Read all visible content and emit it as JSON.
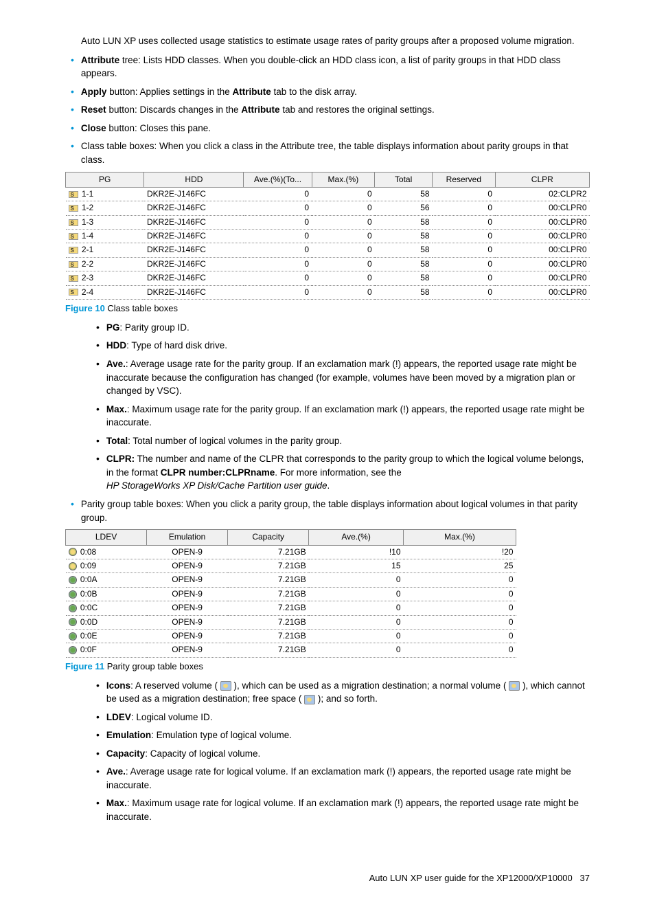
{
  "intro": "Auto LUN XP uses collected usage statistics to estimate usage rates of parity groups after a proposed volume migration.",
  "bullets_top": [
    {
      "bold": "Attribute",
      "rest": " tree: Lists HDD classes. When you double-click an HDD class icon, a list of parity groups in that HDD class appears."
    },
    {
      "bold": "Apply",
      "rest": " button: Applies settings in the ",
      "bold2": "Attribute",
      "rest2": " tab to the disk array."
    },
    {
      "bold": "Reset",
      "rest": " button: Discards changes in the ",
      "bold2": "Attribute",
      "rest2": " tab and restores the original settings."
    },
    {
      "bold": "Close",
      "rest": " button: Closes this pane."
    },
    {
      "plain": "Class table boxes: When you click a class in the Attribute tree, the table displays information about parity groups in that class."
    }
  ],
  "table1": {
    "headers": [
      "PG",
      "HDD",
      "Ave.(%)(To...",
      "Max.(%)",
      "Total",
      "Reserved",
      "CLPR"
    ],
    "widths": [
      "15%",
      "19%",
      "13%",
      "12%",
      "11%",
      "12%",
      "18%"
    ],
    "rows": [
      [
        "1-1",
        "DKR2E-J146FC",
        "0",
        "0",
        "58",
        "0",
        "02:CLPR2"
      ],
      [
        "1-2",
        "DKR2E-J146FC",
        "0",
        "0",
        "56",
        "0",
        "00:CLPR0"
      ],
      [
        "1-3",
        "DKR2E-J146FC",
        "0",
        "0",
        "58",
        "0",
        "00:CLPR0"
      ],
      [
        "1-4",
        "DKR2E-J146FC",
        "0",
        "0",
        "58",
        "0",
        "00:CLPR0"
      ],
      [
        "2-1",
        "DKR2E-J146FC",
        "0",
        "0",
        "58",
        "0",
        "00:CLPR0"
      ],
      [
        "2-2",
        "DKR2E-J146FC",
        "0",
        "0",
        "58",
        "0",
        "00:CLPR0"
      ],
      [
        "2-3",
        "DKR2E-J146FC",
        "0",
        "0",
        "58",
        "0",
        "00:CLPR0"
      ],
      [
        "2-4",
        "DKR2E-J146FC",
        "0",
        "0",
        "58",
        "0",
        "00:CLPR0"
      ]
    ]
  },
  "fig10_label": "Figure 10",
  "fig10_text": " Class table boxes",
  "defs1": [
    {
      "t": "PG",
      "d": ": Parity group ID."
    },
    {
      "t": "HDD",
      "d": ": Type of hard disk drive."
    },
    {
      "t": "Ave.",
      "d": ": Average usage rate for the parity group. If an exclamation mark (!) appears, the reported usage rate might be inaccurate because the configuration has changed (for example, volumes have been moved by a migration plan or changed by VSC)."
    },
    {
      "t": "Max.",
      "d": ": Maximum usage rate for the parity group. If an exclamation mark (!) appears, the reported usage rate might be inaccurate."
    },
    {
      "t": "Total",
      "d": ": Total number of logical volumes in the parity group."
    }
  ],
  "clpr_bold": "CLPR:",
  "clpr_text1": " The number and name of the CLPR that corresponds to the parity group to which the logical volume belongs, in the format ",
  "clpr_bold2": "CLPR number:CLPRname",
  "clpr_text2": ". For more information, see the ",
  "clpr_italic": "HP StorageWorks XP Disk/Cache Partition user guide",
  "clpr_text3": ".",
  "pg_bullet": "Parity group table boxes: When you click a parity group, the table displays information about logical volumes in that parity group.",
  "table2": {
    "headers": [
      "LDEV",
      "Emulation",
      "Capacity",
      "Ave.(%)",
      "Max.(%)"
    ],
    "widths": [
      "18%",
      "18%",
      "18%",
      "21%",
      "25%"
    ],
    "rows": [
      {
        "icon": "type1",
        "ldev": "0:08",
        "em": "OPEN-9",
        "cap": "7.21GB",
        "ave": "!10",
        "max": "!20"
      },
      {
        "icon": "type1",
        "ldev": "0:09",
        "em": "OPEN-9",
        "cap": "7.21GB",
        "ave": "15",
        "max": "25"
      },
      {
        "icon": "type2",
        "ldev": "0:0A",
        "em": "OPEN-9",
        "cap": "7.21GB",
        "ave": "0",
        "max": "0"
      },
      {
        "icon": "type2",
        "ldev": "0:0B",
        "em": "OPEN-9",
        "cap": "7.21GB",
        "ave": "0",
        "max": "0"
      },
      {
        "icon": "type2",
        "ldev": "0:0C",
        "em": "OPEN-9",
        "cap": "7.21GB",
        "ave": "0",
        "max": "0"
      },
      {
        "icon": "type2",
        "ldev": "0:0D",
        "em": "OPEN-9",
        "cap": "7.21GB",
        "ave": "0",
        "max": "0"
      },
      {
        "icon": "type2",
        "ldev": "0:0E",
        "em": "OPEN-9",
        "cap": "7.21GB",
        "ave": "0",
        "max": "0"
      },
      {
        "icon": "type2",
        "ldev": "0:0F",
        "em": "OPEN-9",
        "cap": "7.21GB",
        "ave": "0",
        "max": "0"
      }
    ]
  },
  "fig11_label": "Figure 11",
  "fig11_text": " Parity group table boxes",
  "icons_t": "Icons",
  "icons_a": ": A reserved volume ( ",
  "icons_b": " ), which can be used as a migration destination; a normal volume ( ",
  "icons_c": " ), which cannot be used as a migration destination; free space ( ",
  "icons_d": " ); and so forth.",
  "defs2": [
    {
      "t": "LDEV",
      "d": ": Logical volume ID."
    },
    {
      "t": "Emulation",
      "d": ": Emulation type of logical volume."
    },
    {
      "t": "Capacity",
      "d": ": Capacity of logical volume."
    },
    {
      "t": "Ave.",
      "d": ": Average usage rate for logical volume. If an exclamation mark (!) appears, the reported usage rate might be inaccurate."
    },
    {
      "t": "Max.",
      "d": ": Maximum usage rate for logical volume. If an exclamation mark (!) appears, the reported usage rate might be inaccurate."
    }
  ],
  "footer_text": "Auto LUN XP user guide for the XP12000/XP10000",
  "footer_page": "37"
}
